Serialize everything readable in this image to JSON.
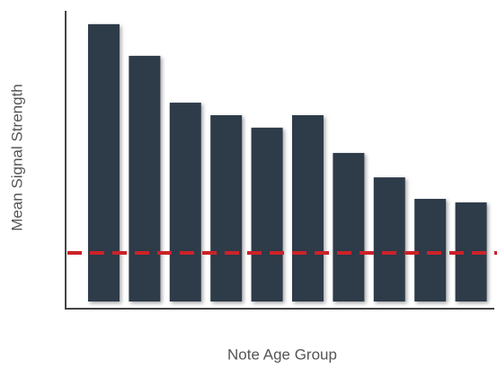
{
  "chart_data": {
    "type": "bar",
    "x_label": "Note Age Group",
    "y_label": "Mean Signal Strength",
    "categories": [
      null,
      null,
      null,
      null,
      null,
      null,
      null,
      null,
      null,
      null
    ],
    "values": [
      95.4,
      84.5,
      68.4,
      64.1,
      59.8,
      64.1,
      51.1,
      42.7,
      35.3,
      34.1
    ],
    "color": "#2e3a4a",
    "ylim": [
      0,
      100
    ],
    "reference_line": {
      "value": 16.7,
      "color": "#cc2229"
    }
  }
}
